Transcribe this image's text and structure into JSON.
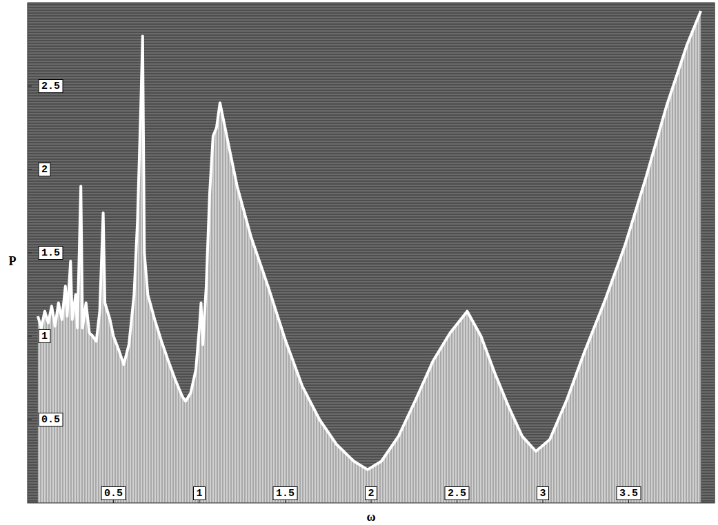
{
  "chart_data": {
    "type": "area",
    "x_label": "ω",
    "y_label": "P",
    "x": [
      0.06,
      0.08,
      0.1,
      0.12,
      0.14,
      0.16,
      0.18,
      0.2,
      0.22,
      0.23,
      0.25,
      0.26,
      0.28,
      0.29,
      0.31,
      0.32,
      0.34,
      0.36,
      0.38,
      0.4,
      0.42,
      0.44,
      0.45,
      0.48,
      0.5,
      0.53,
      0.56,
      0.59,
      0.62,
      0.64,
      0.66,
      0.67,
      0.68,
      0.7,
      0.74,
      0.78,
      0.82,
      0.86,
      0.9,
      0.92,
      0.95,
      0.98,
      1.0,
      1.01,
      1.02,
      1.04,
      1.06,
      1.08,
      1.1,
      1.12,
      1.14,
      1.18,
      1.22,
      1.3,
      1.4,
      1.5,
      1.6,
      1.7,
      1.8,
      1.9,
      1.98,
      2.06,
      2.16,
      2.26,
      2.36,
      2.46,
      2.56,
      2.64,
      2.72,
      2.8,
      2.88,
      2.96,
      3.04,
      3.14,
      3.24,
      3.36,
      3.48,
      3.6,
      3.72,
      3.84,
      3.92
    ],
    "values": [
      1.12,
      1.05,
      1.15,
      1.08,
      1.18,
      1.06,
      1.2,
      1.1,
      1.3,
      1.12,
      1.45,
      1.1,
      1.25,
      1.05,
      1.9,
      1.05,
      1.2,
      1.02,
      1.0,
      0.97,
      1.15,
      1.74,
      1.2,
      1.1,
      1.0,
      0.92,
      0.83,
      0.95,
      1.25,
      1.7,
      2.4,
      2.8,
      1.5,
      1.25,
      1.1,
      0.97,
      0.85,
      0.74,
      0.64,
      0.61,
      0.66,
      0.8,
      1.05,
      1.2,
      0.95,
      1.3,
      1.85,
      2.2,
      2.25,
      2.4,
      2.3,
      2.1,
      1.9,
      1.6,
      1.3,
      0.98,
      0.7,
      0.5,
      0.35,
      0.25,
      0.2,
      0.25,
      0.4,
      0.62,
      0.85,
      1.02,
      1.15,
      1.0,
      0.78,
      0.58,
      0.4,
      0.31,
      0.38,
      0.62,
      0.9,
      1.21,
      1.55,
      1.95,
      2.38,
      2.75,
      2.95
    ],
    "color": "#ffffff",
    "xlim": [
      0,
      4
    ],
    "ylim": [
      0,
      3
    ],
    "xticks": [
      0.5,
      1,
      1.5,
      2,
      2.5,
      3,
      3.5
    ],
    "yticks": [
      0.5,
      1,
      1.5,
      2,
      2.5
    ],
    "grid": false
  }
}
